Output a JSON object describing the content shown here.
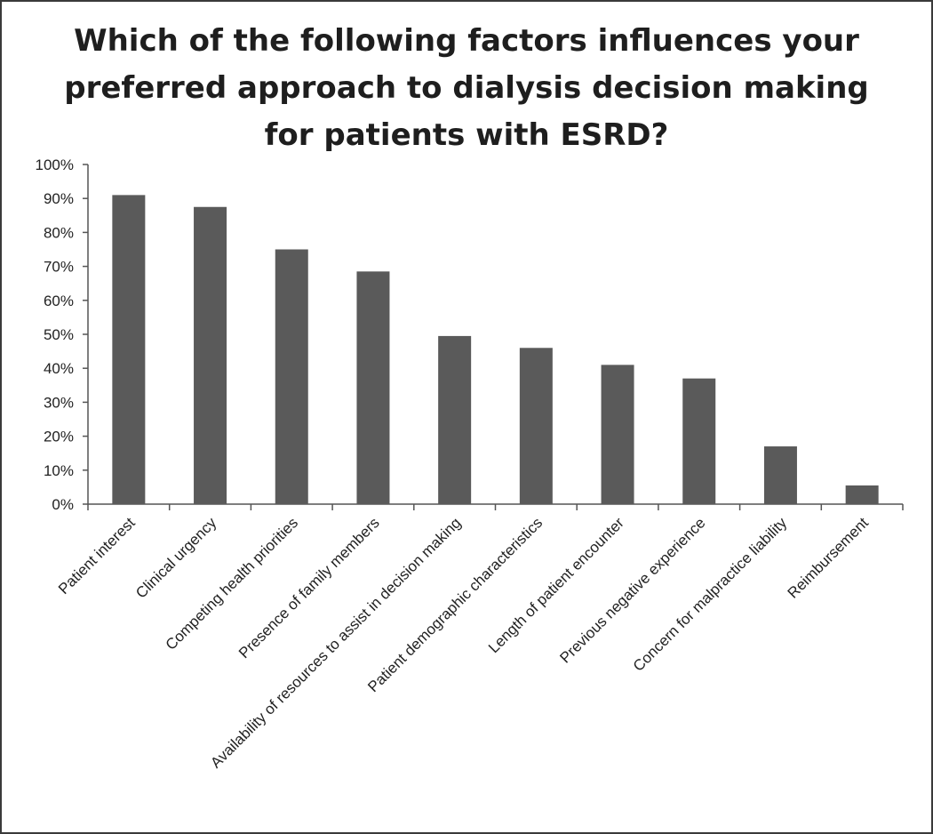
{
  "chart_data": {
    "type": "bar",
    "title": "Which of the following factors influences your\npreferred approach to dialysis decision making\nfor patients with ESRD?",
    "xlabel": "",
    "ylabel": "",
    "categories": [
      "Patient interest",
      "Clinical urgency",
      "Competing health priorities",
      "Presence of family members",
      "Availability of resources to assist in decision making",
      "Patient demographic characteristics",
      "Length of patient encounter",
      "Previous negative experience",
      "Concern for malpractice liability",
      "Reimbursement"
    ],
    "values": [
      91,
      87.5,
      75,
      68.5,
      49.5,
      46,
      41,
      37,
      17,
      5.5
    ],
    "ylim": [
      0,
      100
    ],
    "yticks": [
      "0%",
      "10%",
      "20%",
      "30%",
      "40%",
      "50%",
      "60%",
      "70%",
      "80%",
      "90%",
      "100%"
    ],
    "grid": false,
    "legend": "none",
    "colors": {
      "bar": "#5a5a5a",
      "axis": "#555555",
      "text": "#222222"
    }
  }
}
